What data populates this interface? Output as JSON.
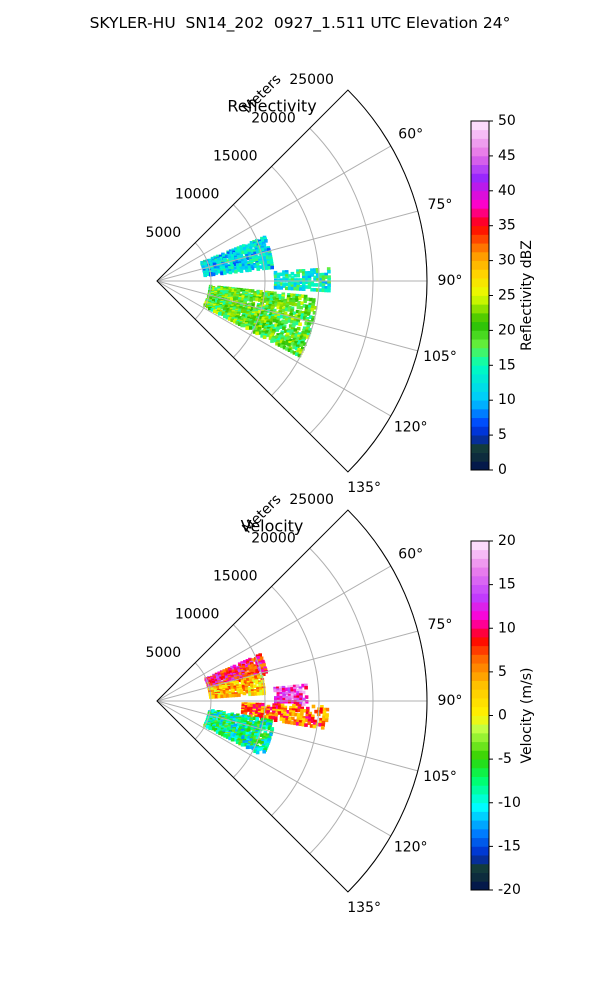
{
  "suptitle": "SKYLER-HU  SN14_202  0927_1.511 UTC Elevation 24°",
  "chart_data": [
    {
      "type": "polar_sector",
      "title": "Reflectivity",
      "radial_label": "Meters",
      "radial_ticks": [
        5000,
        10000,
        15000,
        20000,
        25000
      ],
      "r_max": 25000,
      "theta_ticks": [
        "60°",
        "75°",
        "90°",
        "105°",
        "120°",
        "135°"
      ],
      "theta_range_deg": [
        45,
        135
      ],
      "colorbar": {
        "label": "Reflectivity dBZ",
        "range": [
          0,
          50
        ],
        "ticks": [
          0,
          5,
          10,
          15,
          20,
          25,
          30,
          35,
          40,
          45,
          50
        ]
      },
      "echo_regions": [
        {
          "azimuth_range_deg": [
            68,
            84
          ],
          "range_m": [
            4500,
            11000
          ],
          "dominant_value": 12
        },
        {
          "azimuth_range_deg": [
            86,
            94
          ],
          "range_m": [
            11000,
            16000
          ],
          "dominant_value": 14
        },
        {
          "azimuth_range_deg": [
            96,
            118
          ],
          "range_m": [
            5000,
            15000
          ],
          "dominant_value": 20
        }
      ]
    },
    {
      "type": "polar_sector",
      "title": "Velocity",
      "radial_label": "Meters",
      "radial_ticks": [
        5000,
        10000,
        15000,
        20000,
        25000
      ],
      "r_max": 25000,
      "theta_ticks": [
        "60°",
        "75°",
        "90°",
        "105°",
        "120°",
        "135°"
      ],
      "theta_range_deg": [
        45,
        135
      ],
      "colorbar": {
        "label": "Velocity (m/s)",
        "range": [
          -20,
          20
        ],
        "ticks": [
          -20,
          -15,
          -10,
          -5,
          0,
          5,
          10,
          15,
          20
        ]
      },
      "echo_regions": [
        {
          "azimuth_range_deg": [
            66,
            76
          ],
          "range_m": [
            5000,
            10500
          ],
          "dominant_value": 10
        },
        {
          "azimuth_range_deg": [
            76,
            86
          ],
          "range_m": [
            5000,
            10000
          ],
          "dominant_value": 3
        },
        {
          "azimuth_range_deg": [
            84,
            92
          ],
          "range_m": [
            11000,
            14000
          ],
          "dominant_value": 14
        },
        {
          "azimuth_range_deg": [
            92,
            100
          ],
          "range_m": [
            8000,
            16000
          ],
          "dominant_value": 6
        },
        {
          "azimuth_range_deg": [
            100,
            118
          ],
          "range_m": [
            5000,
            11000
          ],
          "dominant_value": -8
        }
      ]
    }
  ]
}
